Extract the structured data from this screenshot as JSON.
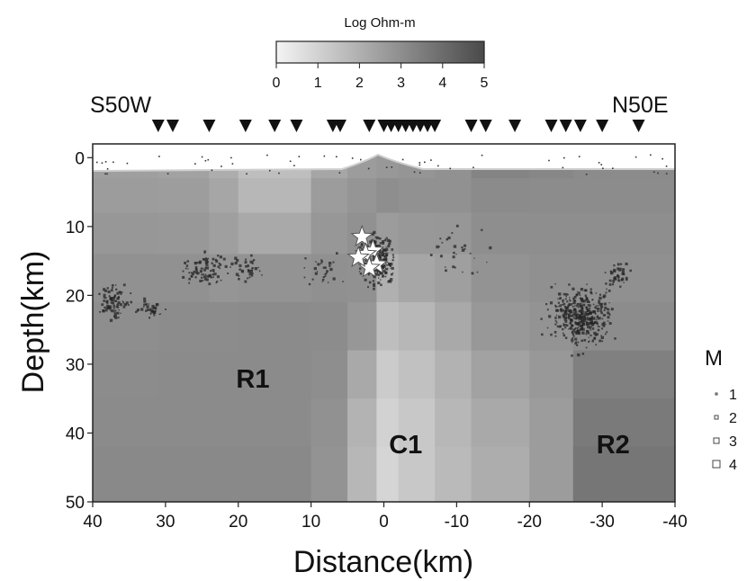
{
  "chart_data": {
    "type": "heatmap",
    "colorbar": {
      "label": "Log Ohm-m",
      "range": [
        0,
        5
      ],
      "ticks": [
        "0",
        "1",
        "2",
        "3",
        "4",
        "5"
      ],
      "color_low": "#f4f4f4",
      "color_high": "#4a4a4a"
    },
    "direction_labels": {
      "left": "S50W",
      "right": "N50E"
    },
    "xlabel": "Distance(km)",
    "ylabel": "Depth(km)",
    "xlim": [
      40,
      -40
    ],
    "ylim": [
      50,
      -2
    ],
    "x_ticks": [
      "40",
      "30",
      "20",
      "10",
      "0",
      "-10",
      "-20",
      "-30",
      "-40"
    ],
    "y_ticks": [
      "0",
      "10",
      "20",
      "30",
      "40",
      "50"
    ],
    "stations_x": [
      31,
      29,
      24,
      19,
      15,
      12,
      7,
      6,
      2,
      0,
      -1,
      -2,
      -3,
      -4,
      -5,
      -6,
      -7,
      -12,
      -14,
      -18,
      -23,
      -25,
      -27,
      -30,
      -35
    ],
    "regions": [
      {
        "label": "R1",
        "x": 18,
        "depth": 32
      },
      {
        "label": "C1",
        "x": -3,
        "depth": 41.5
      },
      {
        "label": "R2",
        "x": -31.5,
        "depth": 41.5
      }
    ],
    "magnitude_legend": {
      "title": "M",
      "levels": [
        "1",
        "2",
        "3",
        "4"
      ]
    },
    "resistivity_columns": [
      {
        "x_range": [
          40,
          31
        ],
        "log_rho": [
          2.5,
          2.6,
          2.75,
          2.9,
          3.0,
          3.05,
          3.1,
          3.15
        ]
      },
      {
        "x_range": [
          31,
          24
        ],
        "log_rho": [
          2.4,
          2.55,
          2.7,
          2.9,
          3.05,
          3.1,
          3.1,
          3.15
        ]
      },
      {
        "x_range": [
          24,
          20
        ],
        "log_rho": [
          2.1,
          2.3,
          2.5,
          2.8,
          3.05,
          3.1,
          3.1,
          3.15
        ]
      },
      {
        "x_range": [
          20,
          10
        ],
        "log_rho": [
          1.6,
          1.8,
          2.2,
          2.85,
          3.1,
          3.1,
          3.1,
          3.15
        ]
      },
      {
        "x_range": [
          10,
          5
        ],
        "log_rho": [
          2.3,
          2.6,
          2.75,
          2.95,
          3.05,
          3.0,
          2.9,
          2.85
        ]
      },
      {
        "x_range": [
          5,
          1
        ],
        "log_rho": [
          2.6,
          2.8,
          2.9,
          2.9,
          2.75,
          2.2,
          1.9,
          1.8
        ]
      },
      {
        "x_range": [
          1,
          -2
        ],
        "log_rho": [
          2.7,
          3.0,
          2.6,
          2.0,
          1.6,
          1.2,
          1.0,
          0.9
        ]
      },
      {
        "x_range": [
          -2,
          -7
        ],
        "log_rho": [
          2.8,
          2.9,
          2.7,
          2.3,
          1.8,
          1.5,
          1.3,
          1.3
        ]
      },
      {
        "x_range": [
          -7,
          -12
        ],
        "log_rho": [
          2.9,
          2.9,
          2.75,
          2.5,
          2.2,
          1.95,
          1.8,
          1.7
        ]
      },
      {
        "x_range": [
          -12,
          -20
        ],
        "log_rho": [
          3.3,
          3.1,
          3.0,
          2.85,
          2.7,
          2.4,
          2.2,
          2.1
        ]
      },
      {
        "x_range": [
          -20,
          -26
        ],
        "log_rho": [
          3.2,
          3.05,
          3.0,
          2.95,
          2.85,
          2.7,
          2.6,
          2.6
        ]
      },
      {
        "x_range": [
          -26,
          -40
        ],
        "log_rho": [
          3.1,
          3.05,
          3.0,
          2.95,
          3.05,
          3.4,
          3.6,
          3.7
        ]
      }
    ],
    "depth_layers": [
      -2,
      3,
      8,
      14,
      21,
      28,
      35,
      42,
      50
    ],
    "seismicity_clusters": [
      {
        "x": 37,
        "depth": 21,
        "sx": 1.8,
        "sy": 2.2,
        "n": 90
      },
      {
        "x": 32,
        "depth": 22,
        "sx": 1.5,
        "sy": 1.2,
        "n": 40
      },
      {
        "x": 25,
        "depth": 16,
        "sx": 3.0,
        "sy": 2.0,
        "n": 90
      },
      {
        "x": 19,
        "depth": 16,
        "sx": 2.0,
        "sy": 1.5,
        "n": 40
      },
      {
        "x": 8,
        "depth": 16,
        "sx": 2.5,
        "sy": 2.0,
        "n": 30
      },
      {
        "x": 1,
        "depth": 15,
        "sx": 2.0,
        "sy": 3.0,
        "n": 260
      },
      {
        "x": -10,
        "depth": 14,
        "sx": 4.0,
        "sy": 3.0,
        "n": 30
      },
      {
        "x": -27,
        "depth": 23,
        "sx": 3.5,
        "sy": 3.5,
        "n": 420
      },
      {
        "x": -32,
        "depth": 17,
        "sx": 1.5,
        "sy": 1.5,
        "n": 40
      }
    ],
    "mainshocks": [
      {
        "x": 3.0,
        "depth": 11.5
      },
      {
        "x": 1.5,
        "depth": 13.5
      },
      {
        "x": 2.5,
        "depth": 14.0
      },
      {
        "x": 1.0,
        "depth": 15.5
      },
      {
        "x": 2.0,
        "depth": 16.0
      },
      {
        "x": 3.5,
        "depth": 14.5
      }
    ]
  }
}
